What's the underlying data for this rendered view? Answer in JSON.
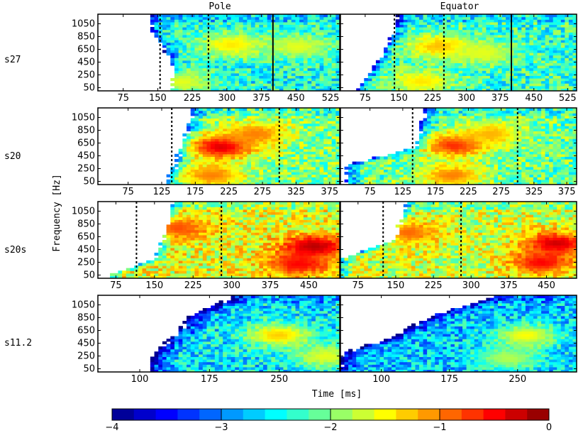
{
  "chart_data": {
    "type": "heatmap",
    "xlabel": "Time [ms]",
    "ylabel": "Frequency [Hz]",
    "column_titles": [
      "Pole",
      "Equator"
    ],
    "colorbar": {
      "min": -4,
      "max": 0,
      "ticks": [
        -4,
        -3,
        -2,
        -1,
        0
      ],
      "tick_labels": [
        "−4",
        "−3",
        "−2",
        "−1",
        "0"
      ],
      "colormap": "jet"
    },
    "y_ticks": [
      50,
      250,
      450,
      650,
      850,
      1050
    ],
    "ylim": [
      0,
      1200
    ],
    "rows": [
      {
        "model": "s27",
        "xlim": [
          20,
          545
        ],
        "x_ticks": [
          75,
          150,
          225,
          300,
          375,
          450,
          525
        ],
        "panels": [
          {
            "title": "Pole",
            "dashed_lines": [
              155,
              260
            ],
            "solid_lines": [
              400
            ],
            "onset": [
              [
                50,
                180
              ],
              [
                300,
                185
              ],
              [
                600,
                170
              ],
              [
                900,
                140
              ],
              [
                1150,
                135
              ]
            ],
            "hot_spots": [
              {
                "t": 310,
                "f": 720,
                "level": -1.4
              },
              {
                "t": 200,
                "f": 150,
                "level": -1.6
              },
              {
                "t": 455,
                "f": 700,
                "level": -1.6
              }
            ],
            "mean_level": -2.4
          },
          {
            "title": "Equator",
            "dashed_lines": [
              140,
              250
            ],
            "solid_lines": [
              400
            ],
            "onset": [
              [
                50,
                60
              ],
              [
                300,
                90
              ],
              [
                600,
                115
              ],
              [
                900,
                140
              ],
              [
                1150,
                150
              ]
            ],
            "hot_spots": [
              {
                "t": 240,
                "f": 700,
                "level": -1.2
              },
              {
                "t": 200,
                "f": 150,
                "level": -1.4
              },
              {
                "t": 340,
                "f": 600,
                "level": -1.6
              }
            ],
            "mean_level": -2.3
          }
        ]
      },
      {
        "model": "s20",
        "xlim": [
          30,
          390
        ],
        "x_ticks": [
          75,
          125,
          175,
          225,
          275,
          325,
          375
        ],
        "panels": [
          {
            "title": "Pole",
            "dashed_lines": [
              140,
              300
            ],
            "solid_lines": [],
            "onset": [
              [
                50,
                135
              ],
              [
                300,
                145
              ],
              [
                600,
                155
              ],
              [
                900,
                165
              ],
              [
                1150,
                170
              ]
            ],
            "hot_spots": [
              {
                "t": 215,
                "f": 600,
                "level": -0.3
              },
              {
                "t": 265,
                "f": 800,
                "level": -1.0
              },
              {
                "t": 200,
                "f": 150,
                "level": -1.0
              }
            ],
            "mean_level": -2.0
          },
          {
            "title": "Equator",
            "dashed_lines": [
              140,
              300
            ],
            "solid_lines": [],
            "onset": [
              [
                50,
                40
              ],
              [
                300,
                40
              ],
              [
                600,
                150
              ],
              [
                900,
                155
              ],
              [
                1150,
                160
              ]
            ],
            "hot_spots": [
              {
                "t": 205,
                "f": 620,
                "level": -0.6
              },
              {
                "t": 260,
                "f": 800,
                "level": -1.2
              },
              {
                "t": 200,
                "f": 150,
                "level": -1.0
              }
            ],
            "mean_level": -2.1
          }
        ]
      },
      {
        "model": "s20s",
        "xlim": [
          40,
          510
        ],
        "x_ticks": [
          75,
          150,
          225,
          300,
          375,
          450
        ],
        "panels": [
          {
            "title": "Pole",
            "dashed_lines": [
              115,
              280
            ],
            "solid_lines": [],
            "onset": [
              [
                50,
                60
              ],
              [
                300,
                150
              ],
              [
                600,
                168
              ],
              [
                900,
                180
              ],
              [
                1150,
                185
              ]
            ],
            "hot_spots": [
              {
                "t": 195,
                "f": 790,
                "level": -0.8
              },
              {
                "t": 460,
                "f": 500,
                "level": -0.2
              },
              {
                "t": 430,
                "f": 230,
                "level": -0.5
              }
            ],
            "mean_level": -1.6
          },
          {
            "title": "Equator",
            "dashed_lines": [
              125,
              280
            ],
            "solid_lines": [],
            "onset": [
              [
                50,
                40
              ],
              [
                300,
                40
              ],
              [
                600,
                150
              ],
              [
                900,
                160
              ],
              [
                1150,
                170
              ]
            ],
            "hot_spots": [
              {
                "t": 175,
                "f": 720,
                "level": -0.9
              },
              {
                "t": 470,
                "f": 550,
                "level": -0.3
              },
              {
                "t": 440,
                "f": 250,
                "level": -0.5
              }
            ],
            "mean_level": -1.7
          }
        ]
      },
      {
        "model": "s11.2",
        "xlim": [
          55,
          315
        ],
        "x_ticks": [
          100,
          175,
          250
        ],
        "panels": [
          {
            "title": "Pole",
            "dashed_lines": [],
            "solid_lines": [],
            "onset": [
              [
                50,
                112
              ],
              [
                300,
                118
              ],
              [
                600,
                140
              ],
              [
                900,
                160
              ],
              [
                1150,
                200
              ]
            ],
            "hot_spots": [
              {
                "t": 250,
                "f": 580,
                "level": -1.3
              },
              {
                "t": 300,
                "f": 250,
                "level": -1.6
              }
            ],
            "mean_level": -2.6
          },
          {
            "title": "Equator",
            "dashed_lines": [],
            "solid_lines": [],
            "onset": [
              [
                50,
                55
              ],
              [
                300,
                60
              ],
              [
                450,
                95
              ],
              [
                600,
                120
              ],
              [
                900,
                160
              ],
              [
                1150,
                220
              ]
            ],
            "hot_spots": [
              {
                "t": 260,
                "f": 570,
                "level": -1.5
              },
              {
                "t": 240,
                "f": 220,
                "level": -1.8
              }
            ],
            "mean_level": -2.7
          }
        ]
      }
    ]
  }
}
